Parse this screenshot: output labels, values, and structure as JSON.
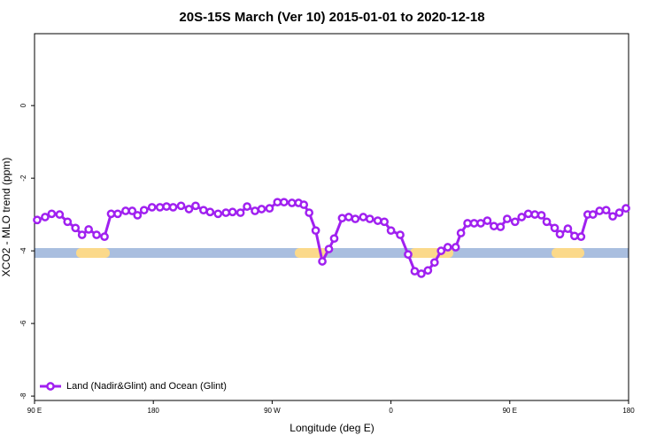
{
  "chart_data": {
    "type": "line",
    "title": "20S-15S March (Ver 10)   2015-01-01 to 2020-12-18",
    "x_label": "Longitude (deg E)",
    "y_label": "XCO2 - MLO trend (ppm)",
    "xlim": [
      90,
      540
    ],
    "xticks": [
      {
        "value": 90,
        "label": "90 E"
      },
      180,
      {
        "value": 270,
        "label": "90 W"
      },
      {
        "value": 360,
        "label": "0"
      },
      {
        "value": 450,
        "label": "90 E"
      },
      180
    ],
    "ylim": [
      -8.12,
      1.98
    ],
    "yticks": [
      -8,
      -6,
      -4,
      -2,
      0
    ],
    "legend_position": "bottom-left",
    "series": [
      {
        "name": "Land (Nadir&Glint) and Ocean (Glint)",
        "color": "#a020f0",
        "x": [
          92,
          98,
          103,
          109,
          115,
          121,
          126,
          131,
          137,
          143,
          148,
          153,
          159,
          164,
          168,
          173,
          179,
          185,
          190,
          195,
          201,
          207,
          212,
          218,
          223,
          229,
          235,
          240,
          246,
          251,
          257,
          262,
          268,
          274,
          279,
          285,
          290,
          294,
          298,
          303,
          308,
          313,
          317,
          323,
          328,
          333,
          339,
          344,
          350,
          355,
          360,
          367,
          373,
          378,
          383,
          388,
          393,
          398,
          403,
          409,
          413,
          418,
          423,
          428,
          433,
          438,
          443,
          448,
          454,
          459,
          464,
          469,
          474,
          478,
          484,
          488,
          494,
          499,
          504,
          509,
          513,
          518,
          523,
          528,
          533,
          538
        ],
        "values": [
          -3.15,
          -3.07,
          -2.98,
          -3.0,
          -3.2,
          -3.37,
          -3.56,
          -3.41,
          -3.56,
          -3.61,
          -2.98,
          -2.98,
          -2.9,
          -2.9,
          -3.02,
          -2.88,
          -2.8,
          -2.8,
          -2.78,
          -2.8,
          -2.76,
          -2.85,
          -2.76,
          -2.88,
          -2.93,
          -2.98,
          -2.95,
          -2.93,
          -2.95,
          -2.78,
          -2.9,
          -2.85,
          -2.83,
          -2.66,
          -2.66,
          -2.68,
          -2.68,
          -2.73,
          -2.95,
          -3.44,
          -4.29,
          -3.95,
          -3.66,
          -3.1,
          -3.07,
          -3.12,
          -3.07,
          -3.12,
          -3.17,
          -3.2,
          -3.44,
          -3.56,
          -4.1,
          -4.56,
          -4.63,
          -4.54,
          -4.32,
          -4.0,
          -3.9,
          -3.9,
          -3.51,
          -3.24,
          -3.24,
          -3.24,
          -3.17,
          -3.32,
          -3.34,
          -3.12,
          -3.2,
          -3.07,
          -2.98,
          -3.0,
          -3.02,
          -3.2,
          -3.37,
          -3.54,
          -3.39,
          -3.59,
          -3.61,
          -3.0,
          -3.0,
          -2.9,
          -2.88,
          -3.05,
          -2.95,
          -2.83
        ]
      }
    ]
  }
}
